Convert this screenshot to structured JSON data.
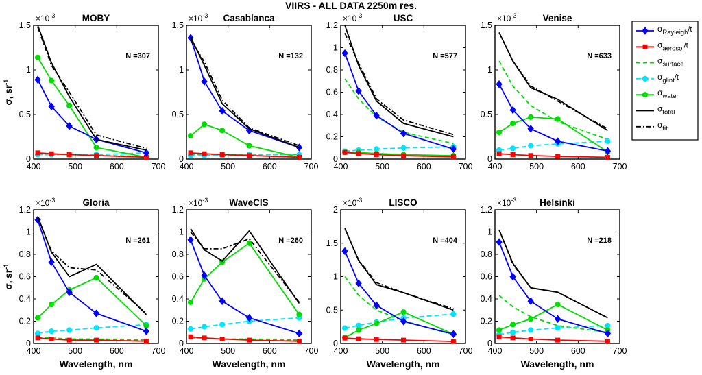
{
  "figure_title": "VIIRS - ALL DATA 2250m res.",
  "exponent_label": "×10",
  "exponent_power": "-3",
  "ylabel_main": "σ, sr",
  "ylabel_power": "-1",
  "xlabel": "Wavelength, nm",
  "colors": {
    "rayleigh": "#0000ff",
    "aerosol": "#ff0000",
    "surface": "#00dd00",
    "glint": "#00e5ff",
    "water": "#00dd00",
    "total": "#000000",
    "fit": "#000000"
  },
  "legend": [
    {
      "key": "rayleigh",
      "sym": "σ",
      "sub": "Rayleigh",
      "suffix": "/t"
    },
    {
      "key": "aerosol",
      "sym": "σ",
      "sub": "aerosol",
      "suffix": "/t"
    },
    {
      "key": "surface",
      "sym": "σ",
      "sub": "surface",
      "suffix": ""
    },
    {
      "key": "glint",
      "sym": "σ",
      "sub": "glint",
      "suffix": "/t"
    },
    {
      "key": "water",
      "sym": "σ",
      "sub": "water",
      "suffix": ""
    },
    {
      "key": "total",
      "sym": "σ",
      "sub": "total",
      "suffix": ""
    },
    {
      "key": "fit",
      "sym": "σ",
      "sub": "fit",
      "suffix": ""
    }
  ],
  "chart_data": [
    {
      "type": "line",
      "title": "MOBY",
      "n_label": "N =307",
      "x": [
        410,
        443,
        486,
        551,
        671
      ],
      "xlim": [
        400,
        700
      ],
      "xticks": [
        "400",
        "500",
        "600",
        "700"
      ],
      "ylim": [
        0,
        1.5
      ],
      "yticks": [
        0,
        0.5,
        1,
        1.5
      ],
      "ytick_labels": [
        "0",
        "0.5",
        "1",
        "1.5"
      ],
      "series": [
        {
          "name": "rayleigh",
          "values": [
            0.89,
            0.59,
            0.37,
            0.22,
            0.07
          ]
        },
        {
          "name": "aerosol",
          "values": [
            0.07,
            0.06,
            0.05,
            0.04,
            0.02
          ]
        },
        {
          "name": "surface",
          "values": [
            0.05,
            0.05,
            0.05,
            0.04,
            0.03
          ]
        },
        {
          "name": "glint",
          "values": [
            0.05,
            0.05,
            0.05,
            0.05,
            0.07
          ]
        },
        {
          "name": "water",
          "values": [
            1.14,
            0.88,
            0.6,
            0.13,
            0.02
          ]
        },
        {
          "name": "total",
          "values": [
            1.5,
            1.08,
            0.7,
            0.22,
            0.1
          ]
        },
        {
          "name": "fit",
          "values": [
            1.48,
            1.05,
            0.75,
            0.27,
            0.12
          ]
        }
      ]
    },
    {
      "type": "line",
      "title": "Casablanca",
      "n_label": "N =132",
      "x": [
        410,
        443,
        486,
        551,
        671
      ],
      "xlim": [
        400,
        700
      ],
      "xticks": [
        "400",
        "500",
        "600",
        "700"
      ],
      "ylim": [
        0,
        1.5
      ],
      "yticks": [
        0,
        0.5,
        1,
        1.5
      ],
      "ytick_labels": [
        "0",
        "0.5",
        "1",
        "1.5"
      ],
      "series": [
        {
          "name": "rayleigh",
          "values": [
            1.36,
            0.87,
            0.54,
            0.32,
            0.13
          ]
        },
        {
          "name": "aerosol",
          "values": [
            0.07,
            0.06,
            0.05,
            0.04,
            0.02
          ]
        },
        {
          "name": "surface",
          "values": [
            0.05,
            0.05,
            0.05,
            0.05,
            0.05
          ]
        },
        {
          "name": "glint",
          "values": [
            0.04,
            0.04,
            0.04,
            0.05,
            0.05
          ]
        },
        {
          "name": "water",
          "values": [
            0.26,
            0.39,
            0.32,
            0.15,
            0.02
          ]
        },
        {
          "name": "total",
          "values": [
            1.37,
            1.05,
            0.62,
            0.34,
            0.13
          ]
        },
        {
          "name": "fit",
          "values": [
            1.34,
            1.09,
            0.66,
            0.35,
            0.15
          ]
        }
      ]
    },
    {
      "type": "line",
      "title": "USC",
      "n_label": "N =577",
      "x": [
        410,
        443,
        486,
        551,
        671
      ],
      "xlim": [
        400,
        700
      ],
      "xticks": [
        "400",
        "500",
        "600",
        "700"
      ],
      "ylim": [
        0,
        1.2
      ],
      "yticks": [
        0,
        0.2,
        0.4,
        0.6,
        0.8,
        1,
        1.2
      ],
      "ytick_labels": [
        "0",
        "0.2",
        "0.4",
        "0.6",
        "0.8",
        "1",
        "1.2"
      ],
      "series": [
        {
          "name": "rayleigh",
          "values": [
            0.95,
            0.61,
            0.39,
            0.23,
            0.09
          ]
        },
        {
          "name": "aerosol",
          "values": [
            0.06,
            0.05,
            0.04,
            0.03,
            0.02
          ]
        },
        {
          "name": "surface",
          "values": [
            0.72,
            0.54,
            0.38,
            0.24,
            0.14
          ]
        },
        {
          "name": "glint",
          "values": [
            0.07,
            0.08,
            0.09,
            0.1,
            0.11
          ]
        },
        {
          "name": "water",
          "values": [
            0.06,
            0.06,
            0.05,
            0.04,
            0.03
          ]
        },
        {
          "name": "total",
          "values": [
            1.2,
            0.84,
            0.52,
            0.32,
            0.2
          ]
        },
        {
          "name": "fit",
          "values": [
            1.13,
            0.86,
            0.54,
            0.35,
            0.22
          ]
        }
      ]
    },
    {
      "type": "line",
      "title": "Venise",
      "n_label": "N =633",
      "x": [
        410,
        443,
        486,
        551,
        671
      ],
      "xlim": [
        400,
        700
      ],
      "xticks": [
        "400",
        "500",
        "600",
        "700"
      ],
      "ylim": [
        0,
        1.5
      ],
      "yticks": [
        0,
        0.5,
        1,
        1.5
      ],
      "ytick_labels": [
        "0",
        "0.5",
        "1",
        "1.5"
      ],
      "series": [
        {
          "name": "rayleigh",
          "values": [
            0.84,
            0.55,
            0.34,
            0.2,
            0.09
          ]
        },
        {
          "name": "aerosol",
          "values": [
            0.06,
            0.05,
            0.04,
            0.03,
            0.02
          ]
        },
        {
          "name": "surface",
          "values": [
            1.1,
            0.82,
            0.6,
            0.42,
            0.22
          ]
        },
        {
          "name": "glint",
          "values": [
            0.1,
            0.12,
            0.15,
            0.17,
            0.2
          ]
        },
        {
          "name": "water",
          "values": [
            0.3,
            0.4,
            0.47,
            0.45,
            0.08
          ]
        },
        {
          "name": "total",
          "values": [
            1.42,
            1.1,
            0.8,
            0.67,
            0.32
          ]
        },
        {
          "name": "fit",
          "values": [
            1.42,
            1.1,
            0.82,
            0.65,
            0.34
          ]
        }
      ]
    },
    {
      "type": "line",
      "title": "Gloria",
      "n_label": "N =261",
      "x": [
        410,
        443,
        486,
        551,
        671
      ],
      "xlim": [
        400,
        700
      ],
      "xticks": [
        "400",
        "500",
        "600",
        "700"
      ],
      "ylim": [
        0,
        1.2
      ],
      "yticks": [
        0,
        0.2,
        0.4,
        0.6,
        0.8,
        1,
        1.2
      ],
      "ytick_labels": [
        "0",
        "0.2",
        "0.4",
        "0.6",
        "0.8",
        "1",
        "1.2"
      ],
      "series": [
        {
          "name": "rayleigh",
          "values": [
            1.11,
            0.73,
            0.46,
            0.27,
            0.11
          ]
        },
        {
          "name": "aerosol",
          "values": [
            0.05,
            0.04,
            0.03,
            0.03,
            0.02
          ]
        },
        {
          "name": "surface",
          "values": [
            0.05,
            0.05,
            0.04,
            0.04,
            0.03
          ]
        },
        {
          "name": "glint",
          "values": [
            0.09,
            0.11,
            0.12,
            0.14,
            0.17
          ]
        },
        {
          "name": "water",
          "values": [
            0.23,
            0.35,
            0.48,
            0.59,
            0.16
          ]
        },
        {
          "name": "total",
          "values": [
            1.14,
            0.82,
            0.6,
            0.71,
            0.26
          ]
        },
        {
          "name": "fit",
          "values": [
            1.13,
            0.83,
            0.68,
            0.66,
            0.27
          ]
        }
      ]
    },
    {
      "type": "line",
      "title": "WaveCIS",
      "n_label": "N =260",
      "x": [
        410,
        443,
        486,
        551,
        671
      ],
      "xlim": [
        400,
        700
      ],
      "xticks": [
        "400",
        "500",
        "600",
        "700"
      ],
      "ylim": [
        0,
        1.2
      ],
      "yticks": [
        0,
        0.2,
        0.4,
        0.6,
        0.8,
        1,
        1.2
      ],
      "ytick_labels": [
        "0",
        "0.2",
        "0.4",
        "0.6",
        "0.8",
        "1",
        "1.2"
      ],
      "series": [
        {
          "name": "rayleigh",
          "values": [
            0.93,
            0.61,
            0.38,
            0.23,
            0.09
          ]
        },
        {
          "name": "aerosol",
          "values": [
            0.06,
            0.05,
            0.04,
            0.03,
            0.02
          ]
        },
        {
          "name": "surface",
          "values": [
            0.05,
            0.05,
            0.04,
            0.04,
            0.03
          ]
        },
        {
          "name": "glint",
          "values": [
            0.13,
            0.15,
            0.17,
            0.2,
            0.23
          ]
        },
        {
          "name": "water",
          "values": [
            0.37,
            0.58,
            0.73,
            0.9,
            0.26
          ]
        },
        {
          "name": "total",
          "values": [
            1.03,
            0.84,
            0.74,
            1.01,
            0.36
          ]
        },
        {
          "name": "fit",
          "values": [
            1.0,
            0.85,
            0.85,
            0.94,
            0.37
          ]
        }
      ]
    },
    {
      "type": "line",
      "title": "LISCO",
      "n_label": "N =404",
      "x": [
        410,
        443,
        486,
        551,
        671
      ],
      "xlim": [
        400,
        700
      ],
      "xticks": [
        "400",
        "500",
        "600",
        "700"
      ],
      "ylim": [
        0,
        2
      ],
      "yticks": [
        0,
        0.5,
        1,
        1.5,
        2
      ],
      "ytick_labels": [
        "0",
        "0.5",
        "1",
        "1.5",
        "2"
      ],
      "series": [
        {
          "name": "rayleigh",
          "values": [
            1.38,
            0.9,
            0.57,
            0.33,
            0.14
          ]
        },
        {
          "name": "aerosol",
          "values": [
            0.08,
            0.07,
            0.06,
            0.05,
            0.03
          ]
        },
        {
          "name": "surface",
          "values": [
            1.0,
            0.72,
            0.5,
            0.34,
            0.13
          ]
        },
        {
          "name": "glint",
          "values": [
            0.23,
            0.27,
            0.32,
            0.38,
            0.44
          ]
        },
        {
          "name": "water",
          "values": [
            0.09,
            0.2,
            0.3,
            0.47,
            0.14
          ]
        },
        {
          "name": "total",
          "values": [
            1.72,
            1.24,
            0.88,
            0.76,
            0.5
          ]
        },
        {
          "name": "fit",
          "values": [
            1.72,
            1.25,
            0.91,
            0.76,
            0.52
          ]
        }
      ]
    },
    {
      "type": "line",
      "title": "Helsinki",
      "n_label": "N =218",
      "x": [
        410,
        443,
        486,
        551,
        671
      ],
      "xlim": [
        400,
        700
      ],
      "xticks": [
        "400",
        "500",
        "600",
        "700"
      ],
      "ylim": [
        0,
        1.2
      ],
      "yticks": [
        0,
        0.2,
        0.4,
        0.6,
        0.8,
        1,
        1.2
      ],
      "ytick_labels": [
        "0",
        "0.2",
        "0.4",
        "0.6",
        "0.8",
        "1",
        "1.2"
      ],
      "series": [
        {
          "name": "rayleigh",
          "values": [
            0.91,
            0.6,
            0.38,
            0.22,
            0.09
          ]
        },
        {
          "name": "aerosol",
          "values": [
            0.06,
            0.05,
            0.04,
            0.03,
            0.02
          ]
        },
        {
          "name": "surface",
          "values": [
            0.43,
            0.33,
            0.24,
            0.16,
            0.1
          ]
        },
        {
          "name": "glint",
          "values": [
            0.08,
            0.1,
            0.12,
            0.14,
            0.16
          ]
        },
        {
          "name": "water",
          "values": [
            0.12,
            0.17,
            0.22,
            0.35,
            0.12
          ]
        },
        {
          "name": "total",
          "values": [
            1.02,
            0.72,
            0.5,
            0.46,
            0.23
          ]
        },
        {
          "name": "fit",
          "values": [
            1.02,
            0.71,
            0.5,
            0.46,
            0.23
          ]
        }
      ]
    }
  ]
}
